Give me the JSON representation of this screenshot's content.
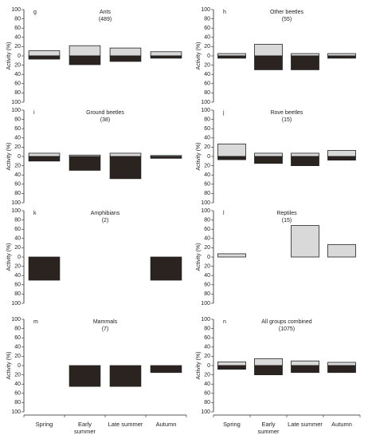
{
  "chart_data": [
    {
      "type": "bar",
      "panel_label": "g",
      "title": "Ants",
      "subtitle": "(489)",
      "ylabel": "Activity (%)",
      "ylim": [
        -100,
        100
      ],
      "yticks": [
        {
          "value": -100,
          "label": "100"
        },
        {
          "value": -80,
          "label": "80"
        },
        {
          "value": -60,
          "label": "60"
        },
        {
          "value": -40,
          "label": "40"
        },
        {
          "value": -20,
          "label": "20"
        },
        0,
        20,
        40,
        60,
        80,
        100
      ],
      "series": [
        {
          "color": "#d9d9d9",
          "values": [
            11,
            22,
            17,
            9
          ]
        },
        {
          "color": "#2b2320",
          "values": [
            -7,
            -19,
            -12,
            -5
          ]
        }
      ]
    },
    {
      "type": "bar",
      "panel_label": "h",
      "title": "Other beetles",
      "subtitle": "(55)",
      "ylabel": "Activity (%)",
      "ylim": [
        -100,
        100
      ],
      "yticks": [
        {
          "value": -100,
          "label": "100"
        },
        {
          "value": -80,
          "label": "80"
        },
        {
          "value": -60,
          "label": "60"
        },
        {
          "value": -40,
          "label": "40"
        },
        {
          "value": -20,
          "label": "20"
        },
        0,
        20,
        40,
        60,
        80,
        100
      ],
      "series": [
        {
          "color": "#d9d9d9",
          "values": [
            5,
            25,
            5,
            5
          ]
        },
        {
          "color": "#2b2320",
          "values": [
            -5,
            -30,
            -30,
            -5
          ]
        }
      ]
    },
    {
      "type": "bar",
      "panel_label": "i",
      "title": "Ground beetles",
      "subtitle": "(38)",
      "ylabel": "Activity (%)",
      "ylim": [
        -100,
        100
      ],
      "yticks": [
        {
          "value": -100,
          "label": "100"
        },
        {
          "value": -80,
          "label": "80"
        },
        {
          "value": -60,
          "label": "60"
        },
        {
          "value": -40,
          "label": "40"
        },
        {
          "value": -20,
          "label": "20"
        },
        0,
        20,
        40,
        60,
        80,
        100
      ],
      "series": [
        {
          "color": "#d9d9d9",
          "values": [
            7,
            3,
            7,
            2
          ]
        },
        {
          "color": "#2b2320",
          "values": [
            -10,
            -30,
            -48,
            -4
          ]
        }
      ]
    },
    {
      "type": "bar",
      "panel_label": "j",
      "title": "Rove beetles",
      "subtitle": "(15)",
      "ylabel": "Activity (%)",
      "ylim": [
        -100,
        100
      ],
      "yticks": [
        {
          "value": -100,
          "label": "100"
        },
        {
          "value": -80,
          "label": "80"
        },
        {
          "value": -60,
          "label": "60"
        },
        {
          "value": -40,
          "label": "40"
        },
        {
          "value": -20,
          "label": "20"
        },
        0,
        20,
        40,
        60,
        80,
        100
      ],
      "series": [
        {
          "color": "#d9d9d9",
          "values": [
            27,
            7,
            7,
            13
          ]
        },
        {
          "color": "#2b2320",
          "values": [
            -7,
            -15,
            -20,
            -8
          ]
        }
      ]
    },
    {
      "type": "bar",
      "panel_label": "k",
      "title": "Amphibians",
      "subtitle": "(2)",
      "ylabel": "Activity (%)",
      "ylim": [
        -100,
        100
      ],
      "yticks": [
        {
          "value": -100,
          "label": "100"
        },
        {
          "value": -80,
          "label": "80"
        },
        {
          "value": -60,
          "label": "60"
        },
        {
          "value": -40,
          "label": "40"
        },
        {
          "value": -20,
          "label": "20"
        },
        0,
        20,
        40,
        60,
        80,
        100
      ],
      "series": [
        {
          "color": "#2b2320",
          "values": [
            -50,
            null,
            null,
            -50
          ]
        }
      ]
    },
    {
      "type": "bar",
      "panel_label": "l",
      "title": "Reptiles",
      "subtitle": "(15)",
      "ylabel": "Activity (%)",
      "ylim": [
        -100,
        100
      ],
      "yticks": [
        {
          "value": -100,
          "label": "100"
        },
        {
          "value": -80,
          "label": "80"
        },
        {
          "value": -60,
          "label": "60"
        },
        {
          "value": -40,
          "label": "40"
        },
        {
          "value": -20,
          "label": "20"
        },
        0,
        20,
        40,
        60,
        80,
        100
      ],
      "series": [
        {
          "color": "#d9d9d9",
          "values": [
            7,
            null,
            68,
            27
          ]
        }
      ]
    },
    {
      "type": "bar",
      "panel_label": "m",
      "title": "Mammals",
      "subtitle": "(7)",
      "ylabel": "Activity (%)",
      "ylim": [
        -100,
        100
      ],
      "yticks": [
        {
          "value": -100,
          "label": "100"
        },
        {
          "value": -80,
          "label": "80"
        },
        {
          "value": -60,
          "label": "60"
        },
        {
          "value": -40,
          "label": "40"
        },
        {
          "value": -20,
          "label": "20"
        },
        0,
        20,
        40,
        60,
        80,
        100
      ],
      "categories": [
        "Spring",
        "Early summer",
        "Late summer",
        "Autumn"
      ],
      "series": [
        {
          "color": "#2b2320",
          "values": [
            null,
            -45,
            -45,
            -15
          ]
        }
      ]
    },
    {
      "type": "bar",
      "panel_label": "n",
      "title": "All groups combined",
      "subtitle": "(1075)",
      "ylabel": "Activity (%)",
      "ylim": [
        -100,
        100
      ],
      "yticks": [
        {
          "value": -100,
          "label": "100"
        },
        {
          "value": -80,
          "label": "80"
        },
        {
          "value": -60,
          "label": "60"
        },
        {
          "value": -40,
          "label": "40"
        },
        {
          "value": -20,
          "label": "20"
        },
        0,
        20,
        40,
        60,
        80,
        100
      ],
      "categories": [
        "Spring",
        "Early summer",
        "Late summer",
        "Autumn"
      ],
      "series": [
        {
          "color": "#d9d9d9",
          "values": [
            8,
            15,
            10,
            7
          ]
        },
        {
          "color": "#2b2320",
          "values": [
            -8,
            -20,
            -15,
            -15
          ]
        }
      ]
    }
  ]
}
